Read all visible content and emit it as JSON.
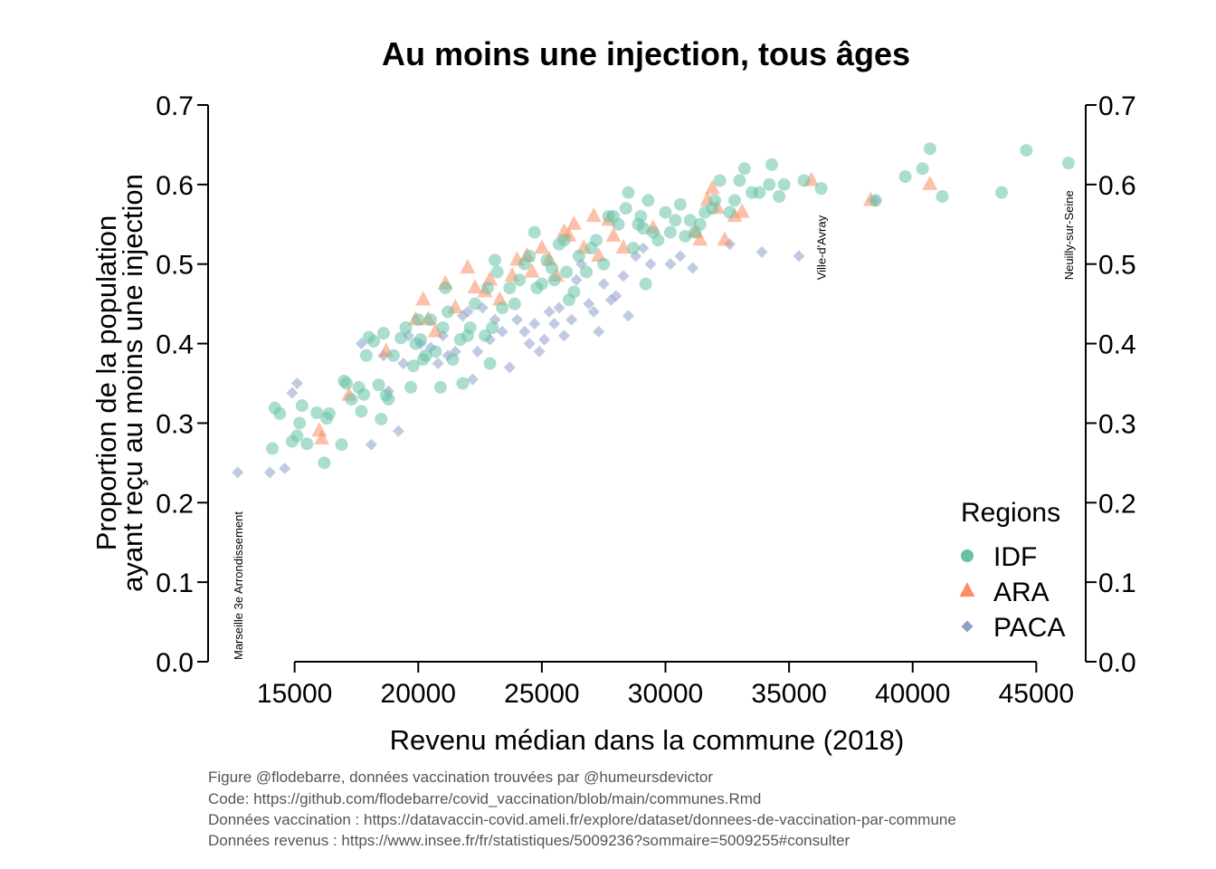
{
  "chart_data": {
    "type": "scatter",
    "title": "Au moins une injection, tous âges",
    "xlabel": "Revenu médian dans la commune (2018)",
    "ylabel_lines": [
      "Proportion de la population",
      "ayant reçu au moins une injection"
    ],
    "xlim": [
      11500,
      47000
    ],
    "ylim": [
      0,
      0.7
    ],
    "x_ticks": [
      15000,
      20000,
      25000,
      30000,
      35000,
      40000,
      45000
    ],
    "y_ticks": [
      0.0,
      0.1,
      0.2,
      0.3,
      0.4,
      0.5,
      0.6,
      0.7
    ],
    "x_tick_labels": [
      "15000",
      "20000",
      "25000",
      "30000",
      "35000",
      "40000",
      "45000"
    ],
    "y_tick_labels": [
      "0.0",
      "0.1",
      "0.2",
      "0.3",
      "0.4",
      "0.5",
      "0.6",
      "0.7"
    ],
    "right_axis": true,
    "grid": false,
    "legend": {
      "title": "Regions",
      "position": "bottom-right",
      "entries": [
        "IDF",
        "ARA",
        "PACA"
      ]
    },
    "colors": {
      "IDF": "#66c2a5",
      "ARA": "#fc8d62",
      "PACA": "#8da0cb"
    },
    "markers": {
      "IDF": "circle",
      "ARA": "triangle",
      "PACA": "diamond"
    },
    "series": [
      {
        "name": "IDF",
        "points": [
          [
            14100,
            0.268
          ],
          [
            14200,
            0.319
          ],
          [
            14400,
            0.312
          ],
          [
            14900,
            0.277
          ],
          [
            15100,
            0.284
          ],
          [
            15200,
            0.3
          ],
          [
            15300,
            0.322
          ],
          [
            15500,
            0.274
          ],
          [
            15900,
            0.313
          ],
          [
            16200,
            0.25
          ],
          [
            16300,
            0.306
          ],
          [
            16400,
            0.312
          ],
          [
            16900,
            0.273
          ],
          [
            17000,
            0.353
          ],
          [
            17100,
            0.35
          ],
          [
            17300,
            0.33
          ],
          [
            17600,
            0.345
          ],
          [
            17700,
            0.315
          ],
          [
            17800,
            0.336
          ],
          [
            17900,
            0.385
          ],
          [
            18000,
            0.408
          ],
          [
            18200,
            0.403
          ],
          [
            18400,
            0.348
          ],
          [
            18500,
            0.305
          ],
          [
            18600,
            0.413
          ],
          [
            18700,
            0.335
          ],
          [
            18800,
            0.33
          ],
          [
            19000,
            0.385
          ],
          [
            19300,
            0.407
          ],
          [
            19500,
            0.42
          ],
          [
            19700,
            0.345
          ],
          [
            19800,
            0.372
          ],
          [
            19900,
            0.4
          ],
          [
            20000,
            0.43
          ],
          [
            20100,
            0.405
          ],
          [
            20200,
            0.38
          ],
          [
            20300,
            0.385
          ],
          [
            20500,
            0.43
          ],
          [
            20700,
            0.39
          ],
          [
            20900,
            0.345
          ],
          [
            21000,
            0.42
          ],
          [
            21100,
            0.47
          ],
          [
            21200,
            0.44
          ],
          [
            21400,
            0.38
          ],
          [
            21700,
            0.405
          ],
          [
            21800,
            0.35
          ],
          [
            22000,
            0.41
          ],
          [
            22100,
            0.42
          ],
          [
            22300,
            0.45
          ],
          [
            22700,
            0.41
          ],
          [
            22800,
            0.47
          ],
          [
            22900,
            0.375
          ],
          [
            23000,
            0.42
          ],
          [
            23100,
            0.505
          ],
          [
            23200,
            0.49
          ],
          [
            23400,
            0.445
          ],
          [
            23700,
            0.47
          ],
          [
            23900,
            0.45
          ],
          [
            24100,
            0.48
          ],
          [
            24300,
            0.5
          ],
          [
            24500,
            0.51
          ],
          [
            24700,
            0.54
          ],
          [
            24800,
            0.47
          ],
          [
            25000,
            0.475
          ],
          [
            25200,
            0.505
          ],
          [
            25400,
            0.495
          ],
          [
            25500,
            0.48
          ],
          [
            25700,
            0.525
          ],
          [
            25900,
            0.53
          ],
          [
            26000,
            0.49
          ],
          [
            26100,
            0.455
          ],
          [
            26300,
            0.465
          ],
          [
            26500,
            0.51
          ],
          [
            26800,
            0.49
          ],
          [
            27000,
            0.52
          ],
          [
            27200,
            0.53
          ],
          [
            27500,
            0.5
          ],
          [
            27700,
            0.56
          ],
          [
            27900,
            0.56
          ],
          [
            28100,
            0.55
          ],
          [
            28400,
            0.57
          ],
          [
            28500,
            0.59
          ],
          [
            28700,
            0.52
          ],
          [
            28900,
            0.55
          ],
          [
            29000,
            0.56
          ],
          [
            29100,
            0.545
          ],
          [
            29200,
            0.475
          ],
          [
            29300,
            0.58
          ],
          [
            29500,
            0.54
          ],
          [
            29700,
            0.53
          ],
          [
            30000,
            0.565
          ],
          [
            30200,
            0.54
          ],
          [
            30400,
            0.555
          ],
          [
            30600,
            0.575
          ],
          [
            30800,
            0.535
          ],
          [
            31000,
            0.555
          ],
          [
            31200,
            0.54
          ],
          [
            31400,
            0.55
          ],
          [
            31600,
            0.565
          ],
          [
            31900,
            0.57
          ],
          [
            32000,
            0.58
          ],
          [
            32200,
            0.605
          ],
          [
            32600,
            0.565
          ],
          [
            32800,
            0.58
          ],
          [
            33000,
            0.605
          ],
          [
            33200,
            0.62
          ],
          [
            33500,
            0.59
          ],
          [
            33800,
            0.59
          ],
          [
            34200,
            0.6
          ],
          [
            34300,
            0.625
          ],
          [
            34600,
            0.585
          ],
          [
            34800,
            0.6
          ],
          [
            35600,
            0.605
          ],
          [
            36300,
            0.595
          ],
          [
            38500,
            0.58
          ],
          [
            39700,
            0.61
          ],
          [
            40400,
            0.62
          ],
          [
            40700,
            0.645
          ],
          [
            41200,
            0.585
          ],
          [
            43600,
            0.59
          ],
          [
            44600,
            0.643
          ],
          [
            46300,
            0.627
          ]
        ]
      },
      {
        "name": "ARA",
        "points": [
          [
            16000,
            0.29
          ],
          [
            16100,
            0.28
          ],
          [
            17200,
            0.335
          ],
          [
            18700,
            0.39
          ],
          [
            19900,
            0.43
          ],
          [
            20200,
            0.455
          ],
          [
            20400,
            0.43
          ],
          [
            20700,
            0.415
          ],
          [
            21100,
            0.475
          ],
          [
            21500,
            0.445
          ],
          [
            22000,
            0.495
          ],
          [
            22300,
            0.47
          ],
          [
            22700,
            0.465
          ],
          [
            22900,
            0.48
          ],
          [
            23300,
            0.455
          ],
          [
            23800,
            0.485
          ],
          [
            24000,
            0.505
          ],
          [
            24400,
            0.51
          ],
          [
            24600,
            0.49
          ],
          [
            25000,
            0.52
          ],
          [
            25300,
            0.505
          ],
          [
            25600,
            0.485
          ],
          [
            25900,
            0.54
          ],
          [
            26100,
            0.535
          ],
          [
            26300,
            0.55
          ],
          [
            26700,
            0.52
          ],
          [
            27100,
            0.56
          ],
          [
            27300,
            0.51
          ],
          [
            27700,
            0.555
          ],
          [
            27900,
            0.535
          ],
          [
            28300,
            0.52
          ],
          [
            29500,
            0.545
          ],
          [
            31200,
            0.54
          ],
          [
            31400,
            0.53
          ],
          [
            31700,
            0.58
          ],
          [
            31900,
            0.595
          ],
          [
            32100,
            0.57
          ],
          [
            32400,
            0.53
          ],
          [
            32800,
            0.56
          ],
          [
            33100,
            0.565
          ],
          [
            35900,
            0.605
          ],
          [
            38300,
            0.58
          ],
          [
            40700,
            0.6
          ]
        ]
      },
      {
        "name": "PACA",
        "points": [
          [
            12700,
            0.238
          ],
          [
            14000,
            0.238
          ],
          [
            14600,
            0.243
          ],
          [
            14900,
            0.338
          ],
          [
            15100,
            0.35
          ],
          [
            17700,
            0.4
          ],
          [
            18100,
            0.273
          ],
          [
            18600,
            0.385
          ],
          [
            18800,
            0.34
          ],
          [
            19200,
            0.29
          ],
          [
            19400,
            0.375
          ],
          [
            19600,
            0.41
          ],
          [
            20100,
            0.4
          ],
          [
            20500,
            0.395
          ],
          [
            20800,
            0.375
          ],
          [
            21000,
            0.41
          ],
          [
            21200,
            0.385
          ],
          [
            21500,
            0.39
          ],
          [
            21800,
            0.435
          ],
          [
            22000,
            0.44
          ],
          [
            22200,
            0.355
          ],
          [
            22400,
            0.39
          ],
          [
            22600,
            0.445
          ],
          [
            22900,
            0.405
          ],
          [
            23100,
            0.43
          ],
          [
            23400,
            0.415
          ],
          [
            23700,
            0.37
          ],
          [
            24000,
            0.43
          ],
          [
            24300,
            0.415
          ],
          [
            24500,
            0.4
          ],
          [
            24700,
            0.425
          ],
          [
            24900,
            0.39
          ],
          [
            25100,
            0.405
          ],
          [
            25300,
            0.44
          ],
          [
            25500,
            0.425
          ],
          [
            25700,
            0.445
          ],
          [
            25900,
            0.41
          ],
          [
            26200,
            0.43
          ],
          [
            26400,
            0.48
          ],
          [
            26600,
            0.5
          ],
          [
            26900,
            0.45
          ],
          [
            27100,
            0.44
          ],
          [
            27300,
            0.415
          ],
          [
            27500,
            0.475
          ],
          [
            27800,
            0.455
          ],
          [
            28000,
            0.46
          ],
          [
            28300,
            0.485
          ],
          [
            28500,
            0.435
          ],
          [
            28800,
            0.51
          ],
          [
            29100,
            0.52
          ],
          [
            29400,
            0.5
          ],
          [
            30200,
            0.5
          ],
          [
            30600,
            0.51
          ],
          [
            31100,
            0.495
          ],
          [
            32600,
            0.525
          ],
          [
            33900,
            0.515
          ],
          [
            35400,
            0.51
          ],
          [
            38500,
            0.58
          ]
        ]
      }
    ],
    "annotations": [
      {
        "text": "Marseille 3e Arrondissement",
        "x": 12700,
        "y": 0.0
      },
      {
        "text": "Ville-d'Avray",
        "x": 36300,
        "y": 0.48
      },
      {
        "text": "Neuilly-sur-Seine",
        "x": 46300,
        "y": 0.48
      }
    ],
    "caption_lines": [
      "Figure @flodebarre, données vaccination trouvées par @humeursdevictor",
      "Code: https://github.com/flodebarre/covid_vaccination/blob/main/communes.Rmd",
      "Données vaccination : https://datavaccin-covid.ameli.fr/explore/dataset/donnees-de-vaccination-par-commune",
      "Données revenus : https://www.insee.fr/fr/statistiques/5009236?sommaire=5009255#consulter"
    ]
  }
}
